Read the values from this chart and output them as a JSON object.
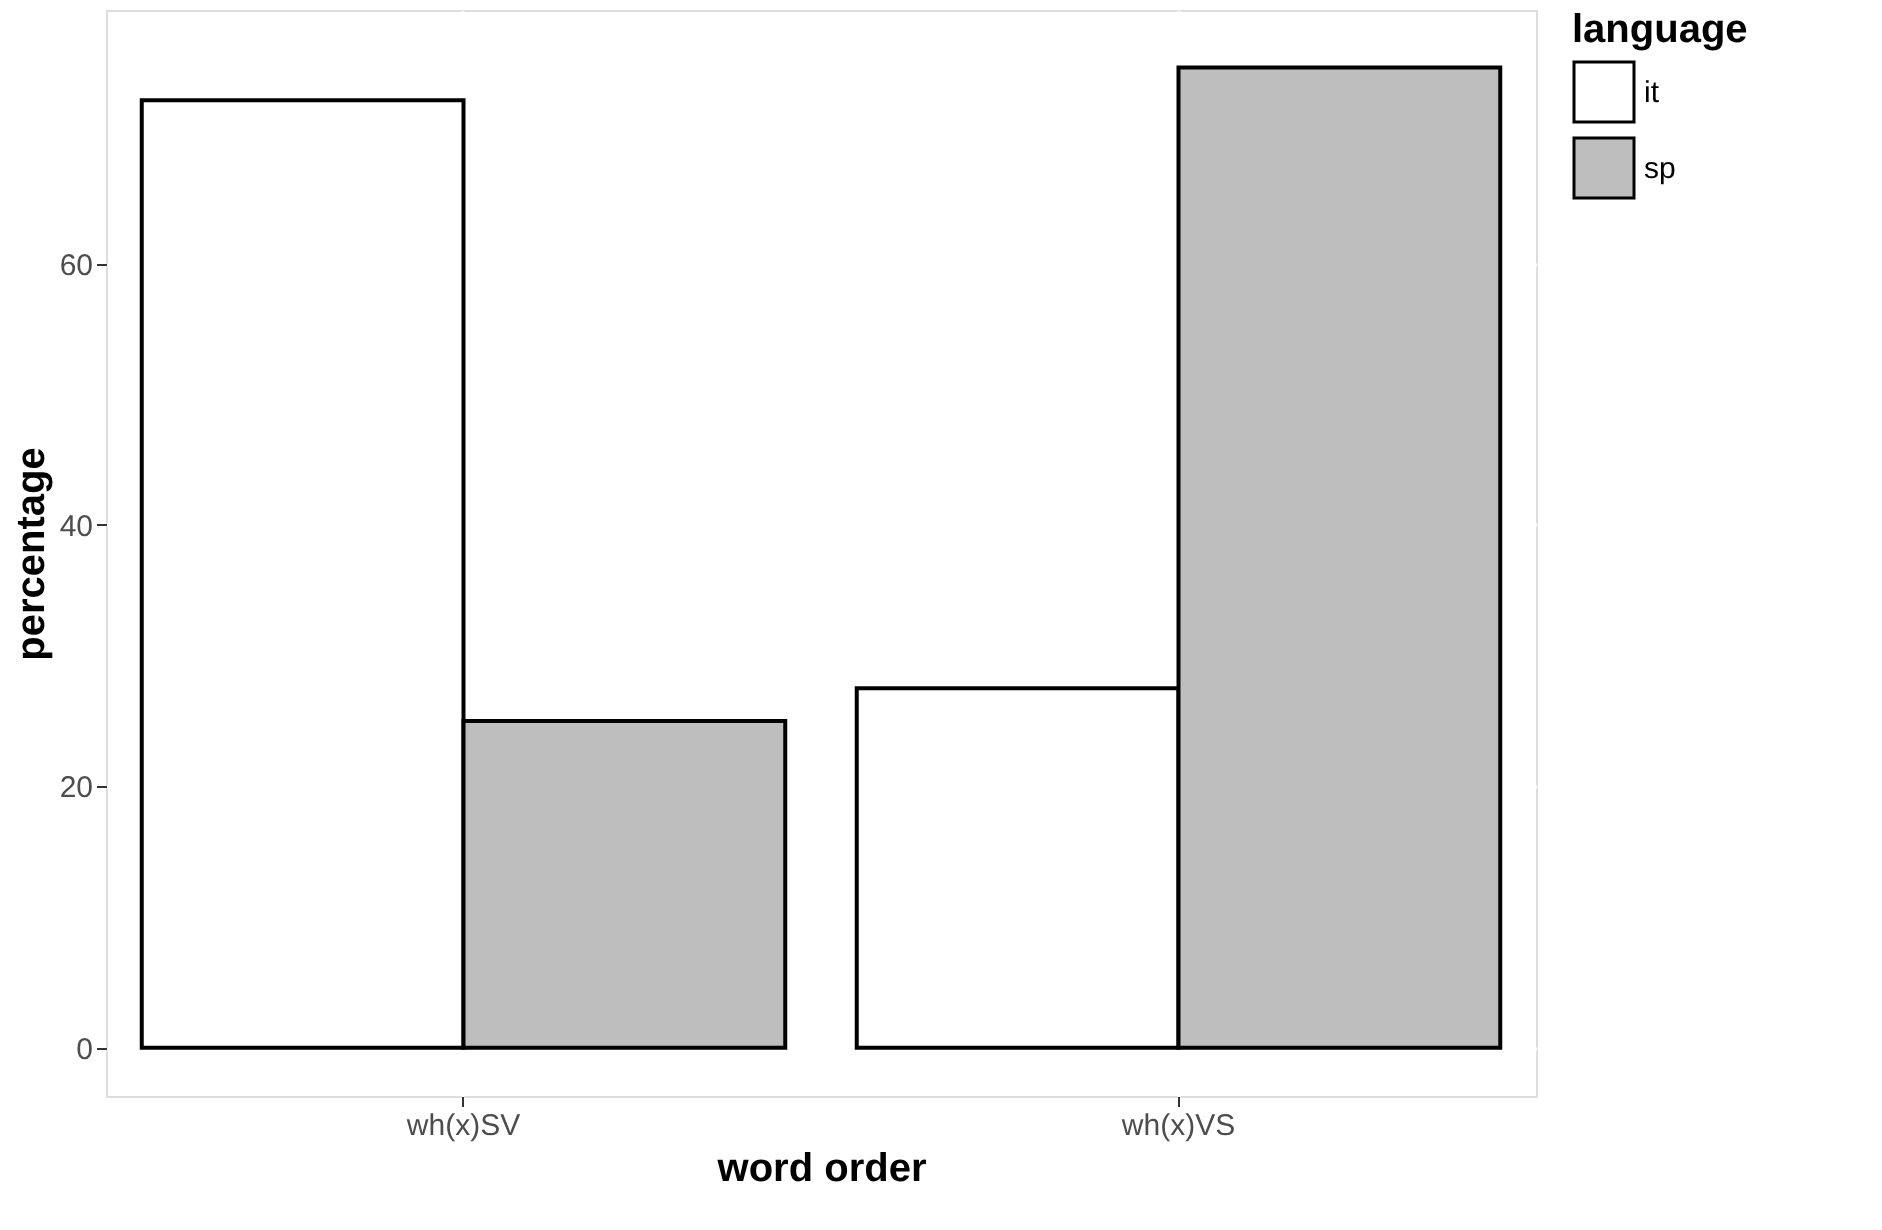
{
  "chart_data": {
    "type": "bar",
    "xlabel": "word order",
    "ylabel": "percentage",
    "legend_title": "language",
    "categories": [
      "wh(x)SV",
      "wh(x)VS"
    ],
    "series": [
      {
        "name": "it",
        "color": "#ffffff",
        "values": [
          72.5,
          27.5
        ]
      },
      {
        "name": "sp",
        "color": "#bebebe",
        "values": [
          25,
          75
        ]
      }
    ],
    "ylim": [
      -3.7,
      79.4
    ],
    "yticks": [
      0,
      20,
      40,
      60
    ],
    "grid": true,
    "legend": "right"
  }
}
